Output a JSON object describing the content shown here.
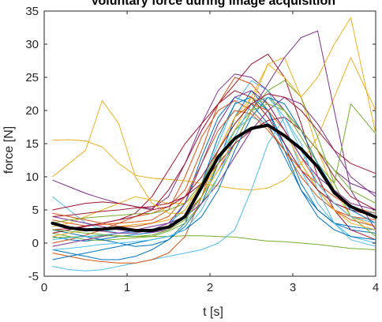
{
  "chart_data": {
    "type": "line",
    "title": "Voluntary force during image acquisition",
    "xlabel": "t [s]",
    "ylabel": "force [N]",
    "xlim": [
      0,
      4
    ],
    "ylim": [
      -5,
      35
    ],
    "xticks": [
      0,
      1,
      2,
      3,
      4
    ],
    "yticks": [
      -5,
      0,
      5,
      10,
      15,
      20,
      25,
      30,
      35
    ],
    "grid": false,
    "legend": "none",
    "x": [
      0.1,
      0.3,
      0.5,
      0.7,
      0.9,
      1.1,
      1.3,
      1.5,
      1.7,
      1.9,
      2.1,
      2.3,
      2.5,
      2.7,
      2.9,
      3.1,
      3.3,
      3.5,
      3.7,
      4.0
    ],
    "mean_series": {
      "color": "#000000",
      "values": [
        3.0,
        2.3,
        2.0,
        2.1,
        2.3,
        1.9,
        1.9,
        2.4,
        4.0,
        8.5,
        13.0,
        15.8,
        17.3,
        17.8,
        16.2,
        14.2,
        11.5,
        7.6,
        5.5,
        3.9
      ]
    },
    "series": [
      {
        "color": "#0072BD",
        "values": [
          1.0,
          0.5,
          0.3,
          0.6,
          1.0,
          1.3,
          1.6,
          2.5,
          6.0,
          13.0,
          19.0,
          22.0,
          21.0,
          18.0,
          13.0,
          8.0,
          5.0,
          3.0,
          2.0,
          1.5
        ]
      },
      {
        "color": "#D95319",
        "values": [
          3.5,
          3.0,
          2.6,
          2.8,
          3.0,
          3.2,
          3.5,
          5.0,
          10.0,
          16.0,
          20.0,
          21.5,
          20.0,
          17.5,
          14.0,
          10.0,
          7.0,
          5.0,
          4.0,
          3.5
        ]
      },
      {
        "color": "#EDB120",
        "values": [
          15.5,
          15.6,
          15.4,
          14.5,
          12.0,
          10.2,
          9.8,
          9.6,
          9.4,
          9.0,
          8.6,
          8.2,
          8.0,
          8.3,
          9.5,
          12.0,
          16.0,
          22.0,
          28.0,
          20.0
        ]
      },
      {
        "color": "#7E2F8E",
        "values": [
          9.5,
          8.5,
          7.5,
          6.7,
          6.0,
          5.5,
          5.2,
          7.0,
          12.0,
          18.0,
          23.0,
          25.5,
          25.0,
          23.0,
          20.0,
          17.0,
          14.0,
          11.0,
          9.0,
          7.5
        ]
      },
      {
        "color": "#77AC30",
        "values": [
          0.8,
          0.9,
          1.0,
          1.1,
          1.1,
          1.0,
          1.0,
          1.0,
          1.1,
          1.1,
          1.0,
          0.9,
          0.6,
          0.3,
          0.2,
          0.0,
          -0.2,
          -0.5,
          -0.8,
          -1.0
        ]
      },
      {
        "color": "#4DBEEE",
        "values": [
          7.0,
          5.0,
          3.0,
          2.0,
          1.5,
          1.6,
          2.0,
          3.0,
          5.0,
          9.0,
          15.0,
          21.0,
          24.5,
          23.0,
          18.0,
          11.0,
          6.0,
          3.0,
          1.0,
          0.0
        ]
      },
      {
        "color": "#A2142F",
        "values": [
          2.0,
          2.2,
          2.6,
          3.0,
          3.5,
          4.5,
          7.0,
          11.0,
          15.0,
          18.0,
          21.0,
          24.0,
          27.0,
          28.5,
          25.0,
          18.0,
          10.0,
          5.0,
          2.0,
          0.5
        ]
      },
      {
        "color": "#0072BD",
        "values": [
          -1.0,
          -1.5,
          -2.0,
          -2.5,
          -2.5,
          -2.0,
          -1.0,
          0.5,
          3.0,
          9.0,
          16.0,
          21.0,
          22.0,
          20.0,
          15.0,
          9.0,
          5.0,
          3.0,
          2.5,
          2.0
        ]
      },
      {
        "color": "#D95319",
        "values": [
          0.0,
          0.5,
          1.2,
          2.0,
          3.0,
          4.0,
          4.5,
          5.5,
          8.0,
          14.0,
          21.0,
          25.0,
          24.0,
          21.0,
          17.0,
          12.0,
          8.0,
          5.0,
          3.5,
          2.5
        ]
      },
      {
        "color": "#EDB120",
        "values": [
          2.5,
          3.0,
          4.0,
          5.0,
          6.0,
          7.0,
          6.5,
          6.0,
          6.0,
          8.0,
          12.0,
          17.0,
          22.0,
          27.0,
          28.0,
          22.0,
          14.0,
          8.0,
          4.0,
          2.5
        ]
      },
      {
        "color": "#7E2F8E",
        "values": [
          4.0,
          3.5,
          3.0,
          2.5,
          2.0,
          1.8,
          1.6,
          2.0,
          4.0,
          7.0,
          11.0,
          15.0,
          20.0,
          24.0,
          28.0,
          31.0,
          32.0,
          20.0,
          8.0,
          2.0
        ]
      },
      {
        "color": "#77AC30",
        "values": [
          1.5,
          1.0,
          0.5,
          0.4,
          0.6,
          0.8,
          1.0,
          1.8,
          3.0,
          6.0,
          10.0,
          15.0,
          20.0,
          23.0,
          24.5,
          22.0,
          16.0,
          9.0,
          4.0,
          1.0
        ]
      },
      {
        "color": "#4DBEEE",
        "values": [
          -3.5,
          -4.0,
          -4.2,
          -4.0,
          -3.5,
          -3.0,
          -2.5,
          -2.0,
          -1.5,
          -1.0,
          0.0,
          2.0,
          8.0,
          15.0,
          19.0,
          15.0,
          8.0,
          3.0,
          0.5,
          -0.5
        ]
      },
      {
        "color": "#A2142F",
        "values": [
          4.0,
          4.2,
          4.5,
          4.8,
          5.0,
          5.3,
          5.5,
          6.0,
          7.0,
          9.0,
          12.0,
          15.0,
          17.0,
          18.5,
          19.0,
          17.0,
          14.0,
          10.0,
          7.0,
          5.0
        ]
      },
      {
        "color": "#0072BD",
        "values": [
          2.0,
          1.5,
          1.0,
          0.5,
          0.0,
          -0.5,
          -0.3,
          0.5,
          2.5,
          6.0,
          12.0,
          19.0,
          23.0,
          20.0,
          14.0,
          8.0,
          4.0,
          2.0,
          1.0,
          0.5
        ]
      },
      {
        "color": "#D95319",
        "values": [
          -1.5,
          -2.0,
          -2.5,
          -2.8,
          -3.0,
          -3.0,
          -2.5,
          -1.5,
          1.0,
          7.0,
          14.0,
          19.0,
          21.0,
          20.0,
          17.0,
          13.0,
          9.0,
          6.0,
          4.0,
          3.0
        ]
      },
      {
        "color": "#EDB120",
        "values": [
          1.0,
          1.5,
          2.0,
          2.0,
          2.5,
          2.8,
          3.0,
          3.5,
          5.0,
          9.0,
          14.0,
          19.0,
          22.0,
          21.0,
          17.0,
          12.0,
          8.0,
          5.0,
          3.0,
          2.0
        ]
      },
      {
        "color": "#7E2F8E",
        "values": [
          -0.5,
          0.0,
          0.5,
          1.0,
          1.5,
          2.0,
          2.5,
          3.0,
          4.0,
          6.0,
          9.0,
          13.0,
          17.0,
          20.0,
          22.0,
          21.0,
          18.0,
          14.0,
          10.0,
          7.0
        ]
      },
      {
        "color": "#77AC30",
        "values": [
          3.0,
          3.5,
          3.8,
          4.0,
          4.2,
          4.4,
          4.5,
          5.0,
          6.0,
          9.0,
          14.0,
          18.0,
          21.0,
          22.0,
          20.0,
          16.0,
          12.0,
          9.0,
          21.0,
          16.5
        ]
      },
      {
        "color": "#4DBEEE",
        "values": [
          0.5,
          0.8,
          1.0,
          1.2,
          1.5,
          1.8,
          2.0,
          2.5,
          4.0,
          8.0,
          13.0,
          17.0,
          19.0,
          18.0,
          15.0,
          11.0,
          8.0,
          6.0,
          5.0,
          4.5
        ]
      },
      {
        "color": "#A2142F",
        "values": [
          1.5,
          2.0,
          2.5,
          3.0,
          3.5,
          4.0,
          5.0,
          8.0,
          12.0,
          17.0,
          21.0,
          23.0,
          22.0,
          19.0,
          15.0,
          11.0,
          8.0,
          6.0,
          5.0,
          4.0
        ]
      },
      {
        "color": "#0072BD",
        "values": [
          -2.5,
          -2.0,
          -1.5,
          -1.0,
          -0.5,
          0.0,
          0.5,
          1.0,
          2.0,
          4.0,
          8.0,
          14.0,
          19.0,
          22.0,
          21.0,
          17.0,
          12.0,
          8.0,
          5.0,
          3.0
        ]
      },
      {
        "color": "#D95319",
        "values": [
          4.5,
          4.0,
          3.5,
          3.0,
          2.5,
          2.5,
          3.0,
          4.0,
          7.0,
          12.0,
          17.0,
          20.0,
          19.5,
          17.0,
          14.0,
          11.0,
          9.0,
          7.0,
          5.5,
          4.5
        ]
      },
      {
        "color": "#EDB120",
        "values": [
          10.0,
          12.0,
          14.0,
          21.5,
          18.0,
          10.0,
          6.0,
          4.5,
          4.5,
          7.0,
          11.0,
          16.0,
          21.0,
          27.0,
          25.0,
          22.0,
          25.0,
          30.0,
          34.0,
          16.5
        ]
      },
      {
        "color": "#7E2F8E",
        "values": [
          3.0,
          2.5,
          2.0,
          1.8,
          1.5,
          1.5,
          2.0,
          3.0,
          6.0,
          12.0,
          18.0,
          22.0,
          23.0,
          21.0,
          17.0,
          13.0,
          10.0,
          8.0,
          6.0,
          5.0
        ]
      },
      {
        "color": "#77AC30",
        "values": [
          2.0,
          1.8,
          1.5,
          1.3,
          1.0,
          1.0,
          1.2,
          2.0,
          3.5,
          7.0,
          12.0,
          17.0,
          20.0,
          21.0,
          20.0,
          17.0,
          14.0,
          11.0,
          8.0,
          6.0
        ]
      },
      {
        "color": "#4DBEEE",
        "values": [
          -1.0,
          -0.8,
          -0.5,
          -0.2,
          0.0,
          0.2,
          0.5,
          1.0,
          2.0,
          5.0,
          10.0,
          16.0,
          21.0,
          22.0,
          19.0,
          14.0,
          9.0,
          6.0,
          4.0,
          3.0
        ]
      },
      {
        "color": "#A2142F",
        "values": [
          5.0,
          5.5,
          6.0,
          6.2,
          6.0,
          5.5,
          5.0,
          5.5,
          7.0,
          10.0,
          14.0,
          18.0,
          21.0,
          22.5,
          22.0,
          20.0,
          17.0,
          14.0,
          12.0,
          10.5
        ]
      }
    ]
  }
}
